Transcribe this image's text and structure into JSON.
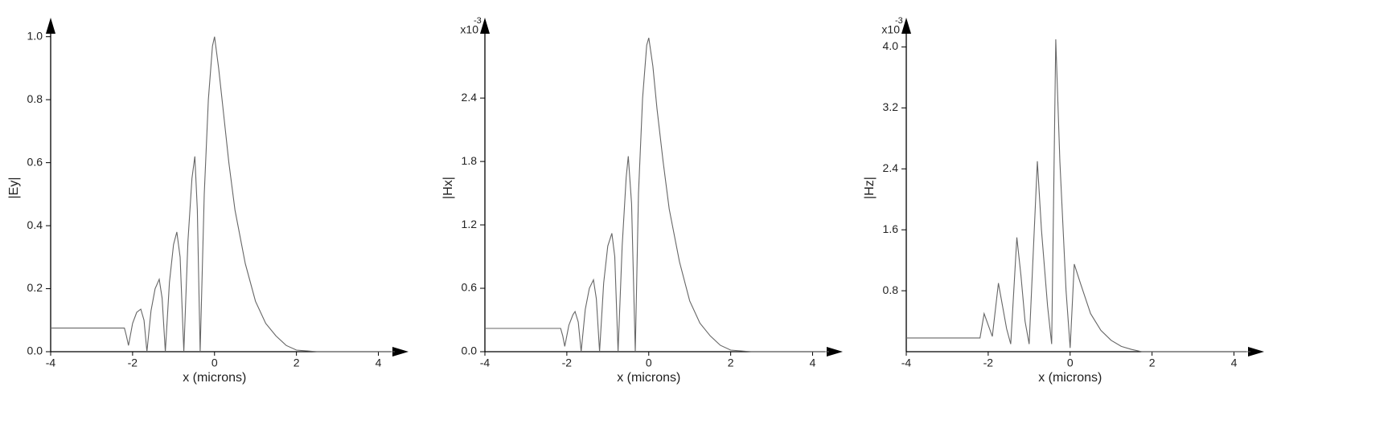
{
  "chart_data": [
    {
      "type": "line",
      "y_label": "|Ey|",
      "x_label": "x (microns)",
      "xlim": [
        -4,
        4.5
      ],
      "ylim": [
        0,
        1.04
      ],
      "xticks": [
        -4,
        -2,
        0,
        2,
        4
      ],
      "yticks": [
        {
          "value": 0,
          "label": "0.0"
        },
        0.2,
        0.4,
        0.6,
        0.8,
        {
          "value": 1,
          "label": "1.0"
        }
      ],
      "x": [
        -4,
        -2.2,
        -2.15,
        -2.1,
        -2.0,
        -1.9,
        -1.8,
        -1.72,
        -1.65,
        -1.55,
        -1.45,
        -1.35,
        -1.28,
        -1.2,
        -1.1,
        -1.0,
        -0.92,
        -0.84,
        -0.75,
        -0.65,
        -0.55,
        -0.48,
        -0.42,
        -0.35,
        -0.25,
        -0.15,
        -0.05,
        0,
        0.1,
        0.2,
        0.35,
        0.5,
        0.75,
        1.0,
        1.25,
        1.5,
        1.75,
        2.0,
        2.5,
        4.4
      ],
      "series": [
        {
          "name": "|Ey|",
          "color": "#666666",
          "values": [
            0.075,
            0.075,
            0.05,
            0.02,
            0.09,
            0.125,
            0.135,
            0.1,
            0.0,
            0.13,
            0.2,
            0.23,
            0.17,
            0.0,
            0.22,
            0.34,
            0.38,
            0.3,
            0.0,
            0.35,
            0.55,
            0.62,
            0.45,
            0.0,
            0.5,
            0.8,
            0.97,
            1.0,
            0.9,
            0.78,
            0.6,
            0.45,
            0.28,
            0.16,
            0.09,
            0.05,
            0.02,
            0.005,
            0,
            0
          ]
        }
      ]
    },
    {
      "type": "line",
      "y_label": "|Hx|",
      "x_label": "x (microns)",
      "multiplier": {
        "base": "x10",
        "exponent": "-3"
      },
      "xlim": [
        -4,
        4.5
      ],
      "ylim": [
        0,
        3.1
      ],
      "xticks": [
        -4,
        -2,
        0,
        2,
        4
      ],
      "yticks": [
        {
          "value": 0,
          "label": "0.0"
        },
        0.6,
        1.2,
        1.8,
        2.4
      ],
      "x": [
        -4,
        -2.15,
        -2.1,
        -2.05,
        -1.95,
        -1.85,
        -1.8,
        -1.72,
        -1.65,
        -1.55,
        -1.45,
        -1.35,
        -1.28,
        -1.2,
        -1.1,
        -1.0,
        -0.9,
        -0.83,
        -0.75,
        -0.65,
        -0.55,
        -0.5,
        -0.42,
        -0.33,
        -0.25,
        -0.15,
        -0.05,
        0,
        0.1,
        0.2,
        0.35,
        0.5,
        0.75,
        1.0,
        1.25,
        1.5,
        1.75,
        2.0,
        2.5,
        4.4
      ],
      "series": [
        {
          "name": "|Hx|",
          "color": "#666666",
          "values": [
            0.22,
            0.22,
            0.15,
            0.05,
            0.25,
            0.35,
            0.38,
            0.28,
            0.0,
            0.4,
            0.6,
            0.68,
            0.5,
            0.0,
            0.65,
            1.0,
            1.12,
            0.9,
            0.0,
            1.0,
            1.65,
            1.85,
            1.4,
            0.0,
            1.5,
            2.4,
            2.9,
            2.97,
            2.7,
            2.3,
            1.8,
            1.35,
            0.85,
            0.48,
            0.27,
            0.15,
            0.06,
            0.015,
            0,
            0
          ]
        }
      ]
    },
    {
      "type": "line",
      "y_label": "|Hz|",
      "x_label": "x (microns)",
      "multiplier": {
        "base": "x10",
        "exponent": "-3"
      },
      "xlim": [
        -4,
        4.5
      ],
      "ylim": [
        0,
        4.3
      ],
      "xticks": [
        -4,
        -2,
        0,
        2,
        4
      ],
      "yticks": [
        0.8,
        1.6,
        2.4,
        3.2,
        {
          "value": 4,
          "label": "4.0"
        }
      ],
      "x": [
        -4,
        -2.2,
        -2.1,
        -2.0,
        -1.9,
        -1.75,
        -1.65,
        -1.55,
        -1.45,
        -1.3,
        -1.2,
        -1.1,
        -1.0,
        -0.8,
        -0.7,
        -0.55,
        -0.45,
        -0.35,
        -0.25,
        -0.1,
        0,
        0.1,
        0.25,
        0.5,
        0.75,
        1.0,
        1.25,
        1.5,
        1.75,
        4.4
      ],
      "series": [
        {
          "name": "|Hz|",
          "color": "#666666",
          "values": [
            0.18,
            0.18,
            0.5,
            0.35,
            0.2,
            0.9,
            0.6,
            0.3,
            0.1,
            1.5,
            1.0,
            0.4,
            0.1,
            2.5,
            1.6,
            0.6,
            0.1,
            4.1,
            2.5,
            0.8,
            0.05,
            1.15,
            0.9,
            0.5,
            0.28,
            0.15,
            0.07,
            0.03,
            0.0,
            0
          ]
        }
      ]
    }
  ]
}
